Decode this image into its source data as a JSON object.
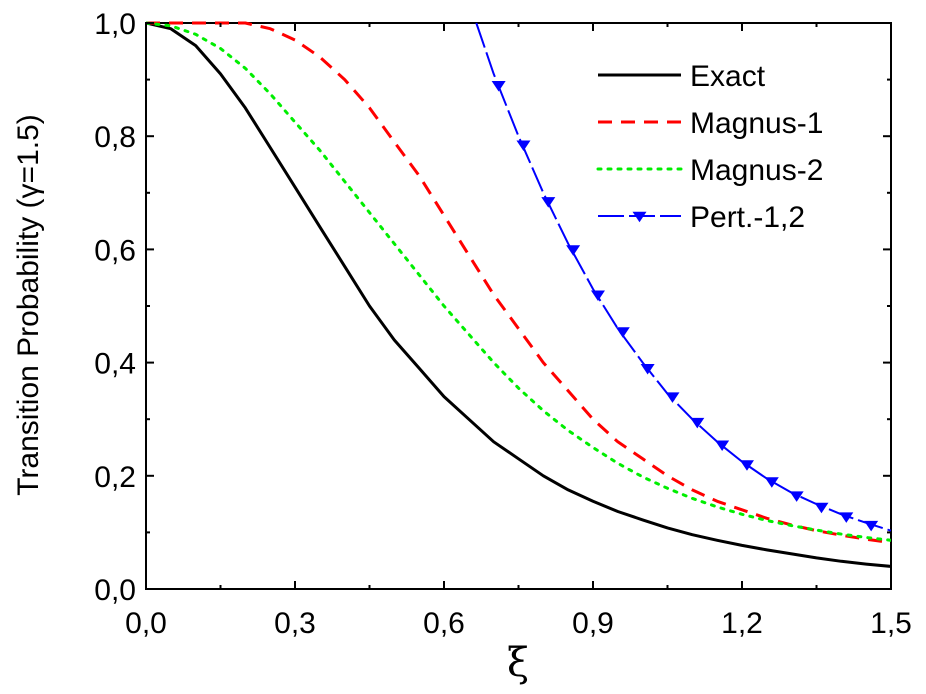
{
  "chart_data": {
    "type": "line",
    "title": "",
    "xlabel": "ξ",
    "ylabel": "Transition Probability (γ=1.5)",
    "xlim": [
      0.0,
      1.5
    ],
    "ylim": [
      0.0,
      1.0
    ],
    "xticks": [
      0.0,
      0.3,
      0.6,
      0.9,
      1.2,
      1.5
    ],
    "xtick_labels": [
      "0,0",
      "0,3",
      "0,6",
      "0,9",
      "1,2",
      "1,5"
    ],
    "yticks": [
      0.0,
      0.2,
      0.4,
      0.6,
      0.8,
      1.0
    ],
    "ytick_labels": [
      "0,0",
      "0,2",
      "0,4",
      "0,6",
      "0,8",
      "1,0"
    ],
    "grid": false,
    "legend_position": "top-right",
    "series": [
      {
        "name": "Exact",
        "color": "#000000",
        "style": "solid",
        "x": [
          0.0,
          0.05,
          0.1,
          0.15,
          0.2,
          0.25,
          0.3,
          0.35,
          0.4,
          0.45,
          0.5,
          0.55,
          0.6,
          0.65,
          0.7,
          0.75,
          0.8,
          0.85,
          0.9,
          0.95,
          1.0,
          1.05,
          1.1,
          1.15,
          1.2,
          1.25,
          1.3,
          1.35,
          1.4,
          1.45,
          1.5
        ],
        "y": [
          1.0,
          0.99,
          0.96,
          0.91,
          0.85,
          0.78,
          0.71,
          0.64,
          0.57,
          0.5,
          0.44,
          0.39,
          0.34,
          0.3,
          0.26,
          0.23,
          0.2,
          0.175,
          0.155,
          0.137,
          0.122,
          0.108,
          0.096,
          0.086,
          0.077,
          0.069,
          0.062,
          0.055,
          0.049,
          0.044,
          0.04
        ]
      },
      {
        "name": "Magnus-1",
        "color": "#ff0000",
        "style": "dashed",
        "x": [
          0.0,
          0.05,
          0.1,
          0.15,
          0.2,
          0.25,
          0.3,
          0.35,
          0.4,
          0.45,
          0.5,
          0.55,
          0.6,
          0.65,
          0.7,
          0.75,
          0.8,
          0.85,
          0.9,
          0.95,
          1.0,
          1.05,
          1.1,
          1.15,
          1.2,
          1.25,
          1.3,
          1.35,
          1.4,
          1.45,
          1.5
        ],
        "y": [
          1.0,
          1.0,
          1.0,
          1.0,
          1.0,
          0.99,
          0.97,
          0.94,
          0.9,
          0.85,
          0.79,
          0.73,
          0.66,
          0.59,
          0.52,
          0.46,
          0.4,
          0.35,
          0.3,
          0.26,
          0.23,
          0.2,
          0.175,
          0.155,
          0.14,
          0.125,
          0.113,
          0.103,
          0.095,
          0.088,
          0.082
        ]
      },
      {
        "name": "Magnus-2",
        "color": "#00ee00",
        "style": "dotted",
        "x": [
          0.0,
          0.05,
          0.1,
          0.15,
          0.2,
          0.25,
          0.3,
          0.35,
          0.4,
          0.45,
          0.5,
          0.55,
          0.6,
          0.65,
          0.7,
          0.75,
          0.8,
          0.85,
          0.9,
          0.95,
          1.0,
          1.05,
          1.1,
          1.15,
          1.2,
          1.25,
          1.3,
          1.35,
          1.4,
          1.45,
          1.5
        ],
        "y": [
          1.0,
          0.995,
          0.98,
          0.955,
          0.92,
          0.875,
          0.825,
          0.775,
          0.72,
          0.665,
          0.61,
          0.555,
          0.5,
          0.45,
          0.4,
          0.355,
          0.315,
          0.28,
          0.25,
          0.222,
          0.198,
          0.178,
          0.16,
          0.145,
          0.132,
          0.121,
          0.112,
          0.104,
          0.097,
          0.091,
          0.086
        ]
      },
      {
        "name": "Pert.-1,2",
        "color": "#0000ff",
        "style": "long-dash",
        "marker": "triangle-down",
        "x": [
          0.665,
          0.7,
          0.75,
          0.8,
          0.85,
          0.9,
          0.95,
          1.0,
          1.05,
          1.1,
          1.15,
          1.2,
          1.25,
          1.3,
          1.35,
          1.4,
          1.45,
          1.5
        ],
        "y": [
          1.0,
          0.91,
          0.8,
          0.7,
          0.61,
          0.53,
          0.46,
          0.4,
          0.345,
          0.3,
          0.26,
          0.225,
          0.195,
          0.17,
          0.15,
          0.132,
          0.117,
          0.103
        ],
        "marker_x": [
          0.71,
          0.76,
          0.81,
          0.86,
          0.91,
          0.96,
          1.01,
          1.06,
          1.11,
          1.16,
          1.21,
          1.26,
          1.31,
          1.36,
          1.41,
          1.46
        ],
        "marker_y": [
          0.89,
          0.785,
          0.685,
          0.6,
          0.52,
          0.455,
          0.39,
          0.34,
          0.295,
          0.255,
          0.22,
          0.19,
          0.165,
          0.145,
          0.128,
          0.113
        ]
      }
    ]
  }
}
